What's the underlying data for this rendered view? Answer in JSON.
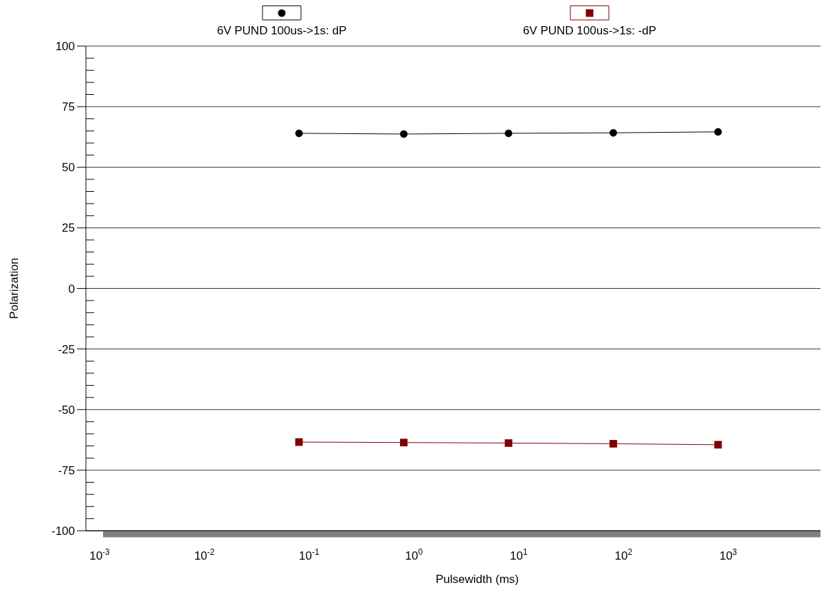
{
  "chart_data": {
    "type": "line",
    "xlabel": "Pulsewidth (ms)",
    "ylabel": "Polarization",
    "log": "x",
    "x": [
      0.08,
      0.8,
      8,
      80,
      800
    ],
    "series": [
      {
        "name": "6V PUND 100us->1s: dP",
        "color": "#000000",
        "marker": "circle",
        "values": [
          64.0,
          63.7,
          64.0,
          64.2,
          64.6
        ]
      },
      {
        "name": "6V PUND 100us->1s: -dP",
        "color": "#800000",
        "marker": "square",
        "values": [
          -63.4,
          -63.6,
          -63.8,
          -64.1,
          -64.5
        ]
      }
    ],
    "xlim": [
      0.00074,
      7600
    ],
    "xticks": [
      {
        "value": 0.001,
        "label": "10$^{-3}$"
      },
      {
        "value": 0.01,
        "label": "10$^{-2}$"
      },
      {
        "value": 0.1,
        "label": "10$^{-1}$"
      },
      {
        "value": 1,
        "label": "10$^{0}$"
      },
      {
        "value": 10,
        "label": "10$^{1}$"
      },
      {
        "value": 100,
        "label": "10$^{2}$"
      },
      {
        "value": 1000,
        "label": "10$^{3}$"
      }
    ],
    "ylim": [
      -100,
      100
    ],
    "yticks": [
      -100,
      {
        "value": -95,
        "label": null
      },
      {
        "value": -90,
        "label": null
      },
      {
        "value": -85,
        "label": null
      },
      {
        "value": -80,
        "label": null
      },
      -75,
      {
        "value": -70,
        "label": null
      },
      {
        "value": -65,
        "label": null
      },
      {
        "value": -60,
        "label": null
      },
      {
        "value": -55,
        "label": null
      },
      -50,
      {
        "value": -45,
        "label": null
      },
      {
        "value": -40,
        "label": null
      },
      {
        "value": -35,
        "label": null
      },
      {
        "value": -30,
        "label": null
      },
      -25,
      {
        "value": -20,
        "label": null
      },
      {
        "value": -15,
        "label": null
      },
      {
        "value": -10,
        "label": null
      },
      {
        "value": -5,
        "label": null
      },
      0,
      {
        "value": 5,
        "label": null
      },
      {
        "value": 10,
        "label": null
      },
      {
        "value": 15,
        "label": null
      },
      {
        "value": 20,
        "label": null
      },
      25,
      {
        "value": 30,
        "label": null
      },
      {
        "value": 35,
        "label": null
      },
      {
        "value": 40,
        "label": null
      },
      {
        "value": 45,
        "label": null
      },
      50,
      {
        "value": 55,
        "label": null
      },
      {
        "value": 60,
        "label": null
      },
      {
        "value": 65,
        "label": null
      },
      {
        "value": 70,
        "label": null
      },
      75,
      {
        "value": 80,
        "label": null
      },
      {
        "value": 85,
        "label": null
      },
      {
        "value": 90,
        "label": null
      },
      {
        "value": 95,
        "label": null
      },
      100
    ],
    "grid": "y",
    "legend": "top"
  }
}
